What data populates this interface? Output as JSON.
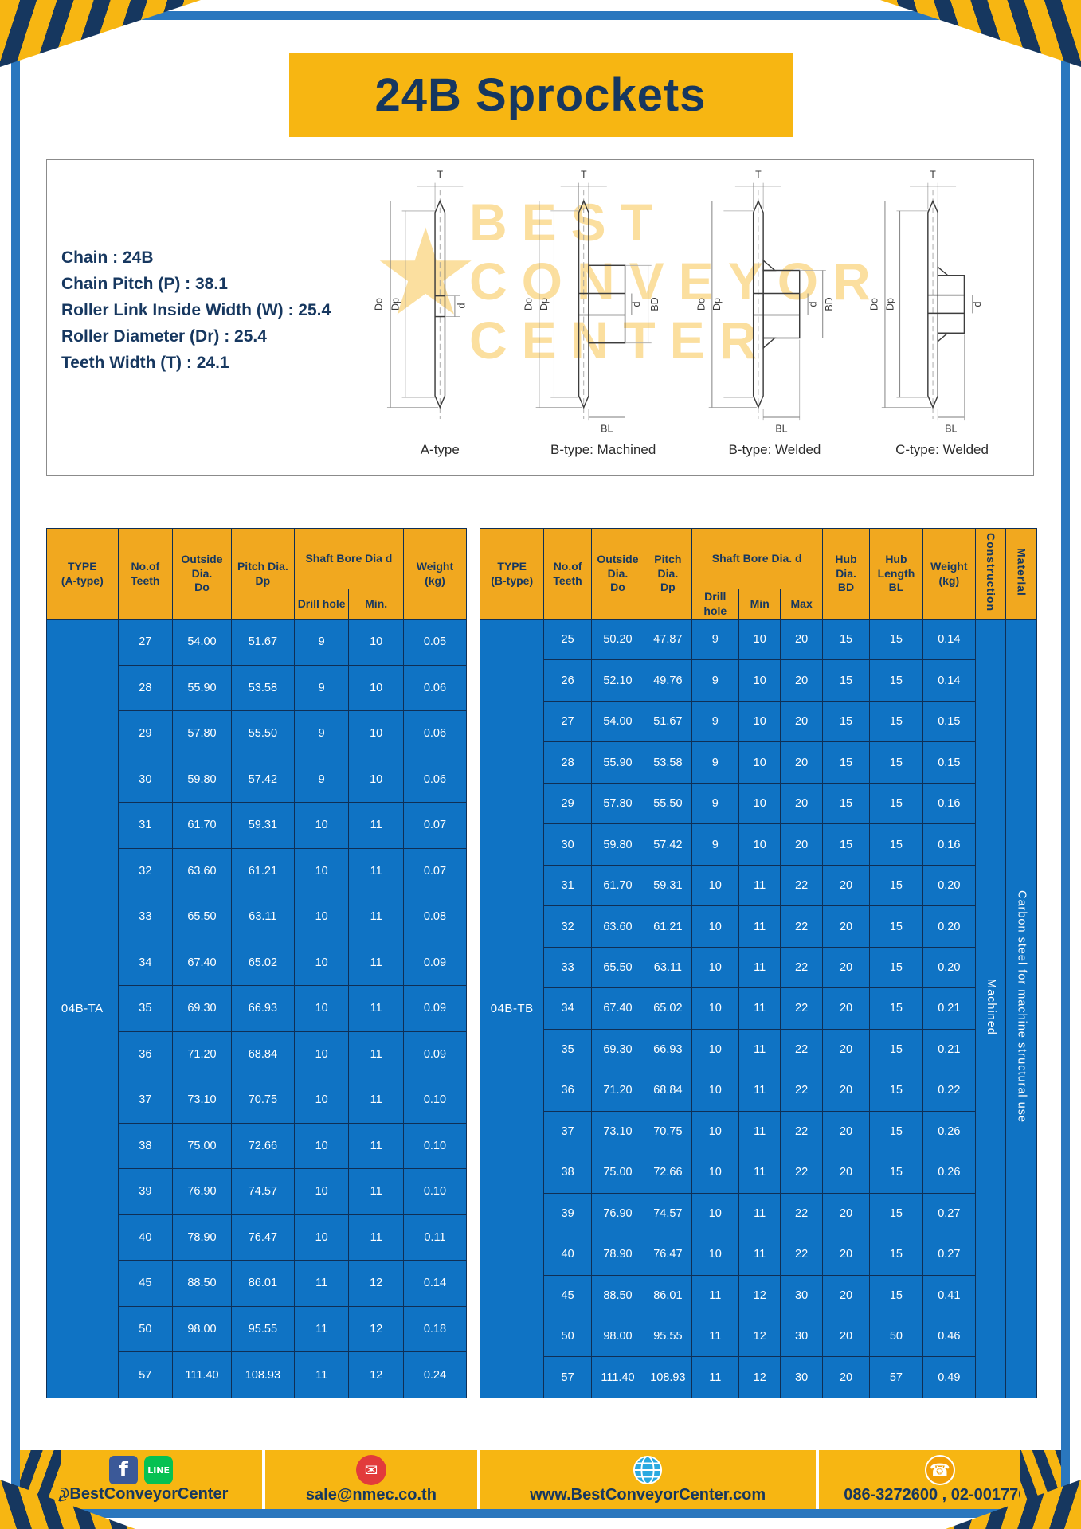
{
  "page": {
    "title": "24B Sprockets"
  },
  "specs": {
    "lines": [
      "Chain  :  24B",
      "Chain Pitch (P)  :  38.1",
      "Roller Link Inside Width (W)  :  25.4",
      "Roller Diameter (Dr)  :  25.4",
      "Teeth Width (T)  :  24.1"
    ]
  },
  "watermark": {
    "lines": [
      "BEST",
      "CONVEYOR",
      "CENTER"
    ],
    "star": "★"
  },
  "drawings": {
    "labels": [
      "A-type",
      "B-type: Machined",
      "B-type: Welded",
      "C-type: Welded"
    ],
    "dims": {
      "t": "T",
      "do": "Do",
      "dp": "Dp",
      "d": "d",
      "bd": "BD",
      "bl": "BL"
    }
  },
  "tables": {
    "a": {
      "type_label": "04B-TA",
      "headers": {
        "type": "TYPE\n(A-type)",
        "teeth": "No.of\nTeeth",
        "outside": "Outside\nDia.\nDo",
        "pitch": "Pitch Dia.\nDp",
        "shaft_bore": "Shaft Bore Dia d",
        "drill": "Drill hole",
        "min": "Min.",
        "weight": "Weight\n(kg)"
      },
      "rows": [
        [
          "27",
          "54.00",
          "51.67",
          "9",
          "10",
          "0.05"
        ],
        [
          "28",
          "55.90",
          "53.58",
          "9",
          "10",
          "0.06"
        ],
        [
          "29",
          "57.80",
          "55.50",
          "9",
          "10",
          "0.06"
        ],
        [
          "30",
          "59.80",
          "57.42",
          "9",
          "10",
          "0.06"
        ],
        [
          "31",
          "61.70",
          "59.31",
          "10",
          "11",
          "0.07"
        ],
        [
          "32",
          "63.60",
          "61.21",
          "10",
          "11",
          "0.07"
        ],
        [
          "33",
          "65.50",
          "63.11",
          "10",
          "11",
          "0.08"
        ],
        [
          "34",
          "67.40",
          "65.02",
          "10",
          "11",
          "0.09"
        ],
        [
          "35",
          "69.30",
          "66.93",
          "10",
          "11",
          "0.09"
        ],
        [
          "36",
          "71.20",
          "68.84",
          "10",
          "11",
          "0.09"
        ],
        [
          "37",
          "73.10",
          "70.75",
          "10",
          "11",
          "0.10"
        ],
        [
          "38",
          "75.00",
          "72.66",
          "10",
          "11",
          "0.10"
        ],
        [
          "39",
          "76.90",
          "74.57",
          "10",
          "11",
          "0.10"
        ],
        [
          "40",
          "78.90",
          "76.47",
          "10",
          "11",
          "0.11"
        ],
        [
          "45",
          "88.50",
          "86.01",
          "11",
          "12",
          "0.14"
        ],
        [
          "50",
          "98.00",
          "95.55",
          "11",
          "12",
          "0.18"
        ],
        [
          "57",
          "111.40",
          "108.93",
          "11",
          "12",
          "0.24"
        ]
      ]
    },
    "b": {
      "type_label": "04B-TB",
      "headers": {
        "type": "TYPE\n(B-type)",
        "teeth": "No.of\nTeeth",
        "outside": "Outside\nDia.\nDo",
        "pitch": "Pitch\nDia.\nDp",
        "shaft_bore": "Shaft Bore Dia.  d",
        "drill": "Drill hole",
        "min": "Min",
        "max": "Max",
        "hub_dia": "Hub\nDia.\nBD",
        "hub_length": "Hub\nLength\nBL",
        "weight": "Weight\n(kg)",
        "construction": "Construction",
        "material": "Material"
      },
      "construction_value": "Machined",
      "material_value": "Carbon steel for machine structural use",
      "rows": [
        [
          "25",
          "50.20",
          "47.87",
          "9",
          "10",
          "20",
          "15",
          "15",
          "0.14"
        ],
        [
          "26",
          "52.10",
          "49.76",
          "9",
          "10",
          "20",
          "15",
          "15",
          "0.14"
        ],
        [
          "27",
          "54.00",
          "51.67",
          "9",
          "10",
          "20",
          "15",
          "15",
          "0.15"
        ],
        [
          "28",
          "55.90",
          "53.58",
          "9",
          "10",
          "20",
          "15",
          "15",
          "0.15"
        ],
        [
          "29",
          "57.80",
          "55.50",
          "9",
          "10",
          "20",
          "15",
          "15",
          "0.16"
        ],
        [
          "30",
          "59.80",
          "57.42",
          "9",
          "10",
          "20",
          "15",
          "15",
          "0.16"
        ],
        [
          "31",
          "61.70",
          "59.31",
          "10",
          "11",
          "22",
          "20",
          "15",
          "0.20"
        ],
        [
          "32",
          "63.60",
          "61.21",
          "10",
          "11",
          "22",
          "20",
          "15",
          "0.20"
        ],
        [
          "33",
          "65.50",
          "63.11",
          "10",
          "11",
          "22",
          "20",
          "15",
          "0.20"
        ],
        [
          "34",
          "67.40",
          "65.02",
          "10",
          "11",
          "22",
          "20",
          "15",
          "0.21"
        ],
        [
          "35",
          "69.30",
          "66.93",
          "10",
          "11",
          "22",
          "20",
          "15",
          "0.21"
        ],
        [
          "36",
          "71.20",
          "68.84",
          "10",
          "11",
          "22",
          "20",
          "15",
          "0.22"
        ],
        [
          "37",
          "73.10",
          "70.75",
          "10",
          "11",
          "22",
          "20",
          "15",
          "0.26"
        ],
        [
          "38",
          "75.00",
          "72.66",
          "10",
          "11",
          "22",
          "20",
          "15",
          "0.26"
        ],
        [
          "39",
          "76.90",
          "74.57",
          "10",
          "11",
          "22",
          "20",
          "15",
          "0.27"
        ],
        [
          "40",
          "78.90",
          "76.47",
          "10",
          "11",
          "22",
          "20",
          "15",
          "0.27"
        ],
        [
          "45",
          "88.50",
          "86.01",
          "11",
          "12",
          "30",
          "20",
          "15",
          "0.41"
        ],
        [
          "50",
          "98.00",
          "95.55",
          "11",
          "12",
          "30",
          "20",
          "50",
          "0.46"
        ],
        [
          "57",
          "111.40",
          "108.93",
          "11",
          "12",
          "30",
          "20",
          "57",
          "0.49"
        ]
      ]
    }
  },
  "footer": {
    "social_label": "@BestConveyorCenter",
    "email": "sale@nmec.co.th",
    "website": "www.BestConveyorCenter.com",
    "phones": "086-3272600 , 02-0017766",
    "icons": {
      "facebook": "f",
      "line": "LINE",
      "mail": "✉",
      "phone": "☎"
    }
  },
  "colors": {
    "yellow": "#f7b612",
    "navy": "#16375f",
    "table_blue": "#0f73c4",
    "header_amber": "#f1a81f",
    "frame_blue": "#2a77be"
  }
}
